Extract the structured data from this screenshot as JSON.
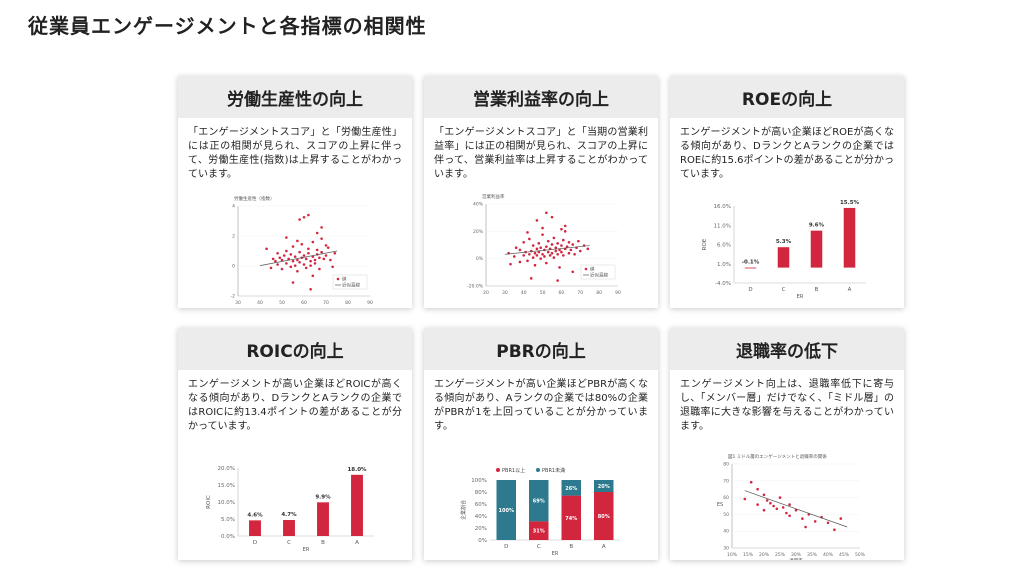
{
  "page_title": "従業員エンゲージメントと各指標の相関性",
  "cards": [
    {
      "title": "労働生産性の向上",
      "desc": "「エンゲージメントスコア」と「労働生産性」には正の相関が見られ、スコアの上昇に伴って、労働生産性(指数)は上昇することがわかっています。"
    },
    {
      "title": "営業利益率の向上",
      "desc": "「エンゲージメントスコア」と「当期の営業利益率」には正の相関が見られ、スコアの上昇に伴って、営業利益率は上昇することがわかっています。"
    },
    {
      "title": "ROEの向上",
      "desc": "エンゲージメントが高い企業ほどROEが高くなる傾向があり、DランクとAランクの企業ではROEに約15.6ポイントの差があることが分かっています。"
    },
    {
      "title": "ROICの向上",
      "desc": "エンゲージメントが高い企業ほどROICが高くなる傾向があり、DランクとAランクの企業ではROICに約13.4ポイントの差があることが分かっています。"
    },
    {
      "title": "PBRの向上",
      "desc": "エンゲージメントが高い企業ほどPBRが高くなる傾向があり、Aランクの企業では80%の企業がPBRが1を上回っていることが分かっています。"
    },
    {
      "title": "退職率の低下",
      "desc": "エンゲージメント向上は、退職率低下に寄与し、「メンバー層」だけでなく、「ミドル層」の退職率に大きな影響を与えることがわかっています。"
    }
  ],
  "chart_data": [
    {
      "type": "scatter",
      "title": "労働生産性（指数）",
      "x_ticks": [
        "30",
        "40",
        "50",
        "60",
        "70",
        "80",
        "90"
      ],
      "y_ticks": [
        "4",
        "2",
        "0",
        "-2"
      ],
      "xlim": [
        30,
        90
      ],
      "ylim": [
        -3,
        5
      ],
      "legend": [
        "値",
        "近似直線"
      ],
      "points": [
        [
          43,
          1.2
        ],
        [
          45,
          -0.5
        ],
        [
          46,
          0.3
        ],
        [
          47,
          0.1
        ],
        [
          48,
          -0.2
        ],
        [
          48,
          0.8
        ],
        [
          49,
          0.4
        ],
        [
          50,
          -0.6
        ],
        [
          50,
          0.2
        ],
        [
          51,
          0.6
        ],
        [
          52,
          -0.1
        ],
        [
          52,
          1.0
        ],
        [
          53,
          0.3
        ],
        [
          54,
          -0.4
        ],
        [
          54,
          0.7
        ],
        [
          55,
          0.1
        ],
        [
          55,
          1.4
        ],
        [
          56,
          -0.3
        ],
        [
          56,
          0.5
        ],
        [
          57,
          0.2
        ],
        [
          57,
          -0.8
        ],
        [
          58,
          0.9
        ],
        [
          58,
          0.0
        ],
        [
          59,
          0.4
        ],
        [
          59,
          1.6
        ],
        [
          60,
          -0.2
        ],
        [
          60,
          0.6
        ],
        [
          61,
          0.3
        ],
        [
          61,
          -0.5
        ],
        [
          62,
          0.8
        ],
        [
          62,
          1.2
        ],
        [
          63,
          0.1
        ],
        [
          63,
          -0.3
        ],
        [
          64,
          0.5
        ],
        [
          64,
          1.8
        ],
        [
          65,
          0.2
        ],
        [
          65,
          -0.1
        ],
        [
          66,
          0.7
        ],
        [
          66,
          1.1
        ],
        [
          67,
          0.4
        ],
        [
          67,
          -0.6
        ],
        [
          68,
          0.9
        ],
        [
          68,
          2.1
        ],
        [
          69,
          0.3
        ],
        [
          70,
          0.6
        ],
        [
          71,
          1.3
        ],
        [
          72,
          0.2
        ],
        [
          73,
          -0.4
        ],
        [
          74,
          0.8
        ],
        [
          60,
          4.0
        ],
        [
          62,
          4.2
        ],
        [
          58,
          3.8
        ],
        [
          66,
          2.6
        ],
        [
          55,
          -1.8
        ],
        [
          63,
          -2.4
        ],
        [
          52,
          2.2
        ],
        [
          70,
          1.5
        ],
        [
          57,
          1.9
        ],
        [
          64,
          -1.2
        ],
        [
          68,
          3.1
        ]
      ],
      "trend": [
        [
          40,
          -0.3
        ],
        [
          75,
          1.0
        ]
      ]
    },
    {
      "type": "scatter",
      "title": "営業利益率",
      "x_ticks": [
        "20",
        "30",
        "40",
        "50",
        "60",
        "70",
        "80",
        "90"
      ],
      "y_ticks": [
        "40%",
        "20%",
        "0%",
        "-20.0%"
      ],
      "xlim": [
        20,
        90
      ],
      "ylim": [
        -25,
        50
      ],
      "legend": [
        "値",
        "近似直線"
      ],
      "points": [
        [
          32,
          5
        ],
        [
          33,
          -5
        ],
        [
          35,
          2
        ],
        [
          36,
          10
        ],
        [
          38,
          8
        ],
        [
          38,
          -3
        ],
        [
          40,
          3
        ],
        [
          40,
          15
        ],
        [
          41,
          6
        ],
        [
          42,
          -2
        ],
        [
          43,
          4
        ],
        [
          43,
          18
        ],
        [
          44,
          7
        ],
        [
          45,
          1
        ],
        [
          45,
          12
        ],
        [
          46,
          5
        ],
        [
          46,
          -6
        ],
        [
          47,
          9
        ],
        [
          47,
          3
        ],
        [
          48,
          14
        ],
        [
          48,
          6
        ],
        [
          49,
          0
        ],
        [
          49,
          10
        ],
        [
          50,
          4
        ],
        [
          50,
          22
        ],
        [
          51,
          8
        ],
        [
          51,
          2
        ],
        [
          52,
          11
        ],
        [
          52,
          -4
        ],
        [
          53,
          6
        ],
        [
          53,
          16
        ],
        [
          54,
          3
        ],
        [
          54,
          9
        ],
        [
          55,
          13
        ],
        [
          55,
          5
        ],
        [
          56,
          1
        ],
        [
          56,
          19
        ],
        [
          57,
          7
        ],
        [
          57,
          10
        ],
        [
          58,
          4
        ],
        [
          58,
          14
        ],
        [
          59,
          8
        ],
        [
          59,
          -8
        ],
        [
          60,
          12
        ],
        [
          60,
          6
        ],
        [
          61,
          17
        ],
        [
          61,
          3
        ],
        [
          62,
          9
        ],
        [
          62,
          25
        ],
        [
          63,
          11
        ],
        [
          64,
          5
        ],
        [
          64,
          15
        ],
        [
          65,
          8
        ],
        [
          66,
          13
        ],
        [
          67,
          4
        ],
        [
          68,
          10
        ],
        [
          69,
          16
        ],
        [
          70,
          7
        ],
        [
          72,
          12
        ],
        [
          74,
          9
        ],
        [
          47,
          35
        ],
        [
          55,
          38
        ],
        [
          50,
          28
        ],
        [
          58,
          -20
        ],
        [
          44,
          -18
        ],
        [
          62,
          30
        ],
        [
          52,
          42
        ],
        [
          60,
          27
        ],
        [
          42,
          24
        ],
        [
          66,
          -12
        ]
      ],
      "trend": [
        [
          30,
          4
        ],
        [
          75,
          12
        ]
      ]
    },
    {
      "type": "bar",
      "categories": [
        "D",
        "C",
        "B",
        "A"
      ],
      "values": [
        -0.1,
        5.3,
        9.6,
        15.5
      ],
      "value_labels": [
        "-0.1%",
        "5.3%",
        "9.6%",
        "15.5%"
      ],
      "y_ticks": [
        "16.0%",
        "11.0%",
        "6.0%",
        "1.0%",
        "-4.0%"
      ],
      "ylim": [
        -4,
        16
      ],
      "ylabel": "ROE",
      "xlabel": "ER"
    },
    {
      "type": "bar",
      "categories": [
        "D",
        "C",
        "B",
        "A"
      ],
      "values": [
        4.6,
        4.7,
        9.9,
        18.0
      ],
      "value_labels": [
        "4.6%",
        "4.7%",
        "9.9%",
        "18.0%"
      ],
      "y_ticks": [
        "20.0%",
        "15.0%",
        "10.0%",
        "5.0%",
        "0.0%"
      ],
      "ylim": [
        0,
        20
      ],
      "ylabel": "ROIC",
      "xlabel": "ER"
    },
    {
      "type": "bar",
      "stacked": true,
      "categories": [
        "D",
        "C",
        "B",
        "A"
      ],
      "series": [
        {
          "name": "PBR1以上",
          "values": [
            0,
            31,
            74,
            80
          ],
          "labels": [
            "",
            "31%",
            "74%",
            "80%"
          ]
        },
        {
          "name": "PBR1未満",
          "values": [
            100,
            69,
            26,
            20
          ],
          "labels": [
            "100%",
            "69%",
            "26%",
            "20%"
          ]
        }
      ],
      "y_ticks": [
        "100%",
        "80%",
        "60%",
        "40%",
        "20%",
        "0%"
      ],
      "ylim": [
        0,
        100
      ],
      "ylabel": "企業割合",
      "xlabel": "ER"
    },
    {
      "type": "scatter",
      "title": "図1 ミドル層のエンゲージメントと退職率の関係",
      "x_ticks": [
        "10%",
        "15%",
        "20%",
        "25%",
        "30%",
        "35%",
        "40%",
        "45%",
        "50%"
      ],
      "y_ticks": [
        "80",
        "70",
        "60",
        "50",
        "40",
        "30"
      ],
      "xlim": [
        10,
        50
      ],
      "ylim": [
        25,
        85
      ],
      "ylabel": "ES",
      "xlabel": "退職率",
      "points": [
        [
          14,
          60
        ],
        [
          16,
          72
        ],
        [
          18,
          67
        ],
        [
          20,
          63
        ],
        [
          21,
          59
        ],
        [
          22,
          57
        ],
        [
          23,
          55
        ],
        [
          24,
          53
        ],
        [
          25,
          61
        ],
        [
          26,
          54
        ],
        [
          27,
          50
        ],
        [
          28,
          48
        ],
        [
          30,
          52
        ],
        [
          32,
          46
        ],
        [
          34,
          49
        ],
        [
          36,
          44
        ],
        [
          38,
          47
        ],
        [
          40,
          43
        ],
        [
          42,
          38
        ],
        [
          44,
          46
        ],
        [
          20,
          52
        ],
        [
          28,
          56
        ],
        [
          33,
          40
        ],
        [
          18,
          56
        ]
      ],
      "trend": [
        [
          14,
          66
        ],
        [
          46,
          40
        ]
      ]
    }
  ],
  "colors": {
    "accent": "#d2263f",
    "teal": "#2d7a8f",
    "axis": "#999999"
  }
}
